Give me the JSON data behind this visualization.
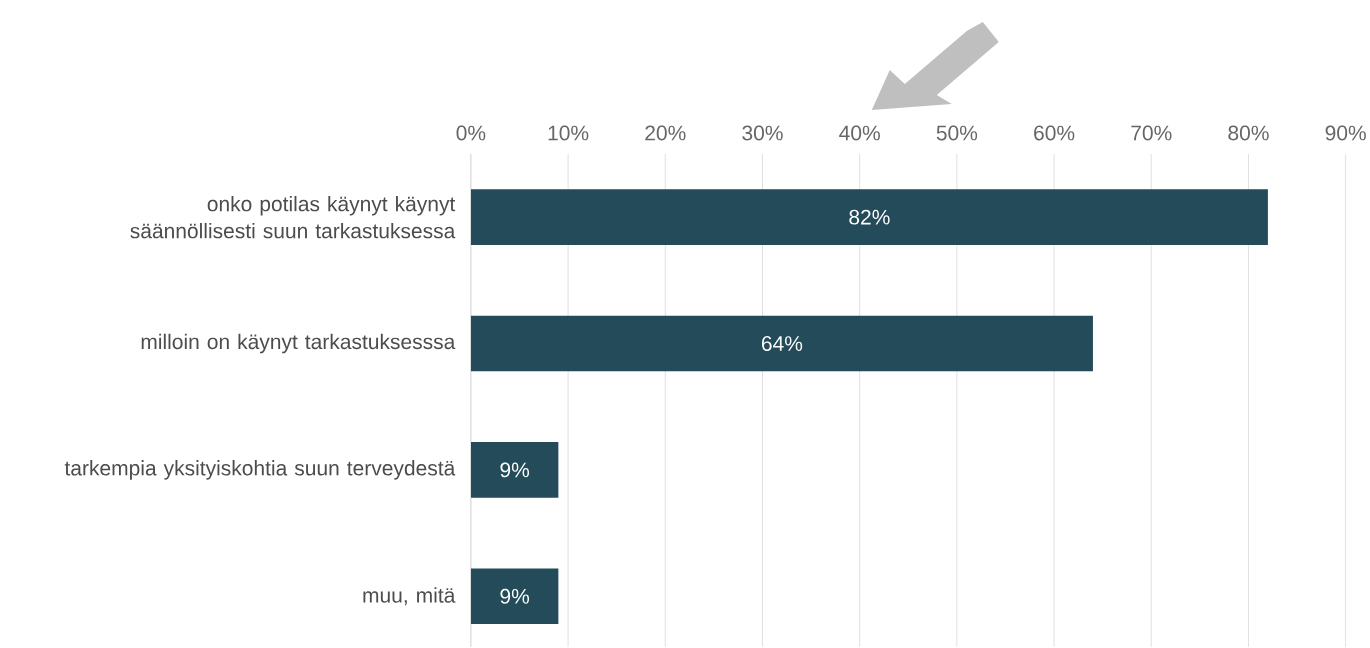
{
  "chart_data": {
    "type": "bar",
    "orientation": "horizontal",
    "categories": [
      "onko potilas käynyt käynyt säännöllisesti suun tarkastuksessa",
      "milloin on käynyt tarkastuksesssa",
      "tarkempia yksityiskohtia suun terveydestä",
      "muu, mitä"
    ],
    "values": [
      82,
      64,
      9,
      9
    ],
    "value_labels": [
      "82%",
      "64%",
      "9%",
      "9%"
    ],
    "color": "#234b5a",
    "xlim": [
      0,
      90
    ],
    "xticks": [
      {
        "value": 0,
        "label": "0%"
      },
      {
        "value": 10,
        "label": "10%"
      },
      {
        "value": 20,
        "label": "20%"
      },
      {
        "value": 30,
        "label": "30%"
      },
      {
        "value": 40,
        "label": "40%"
      },
      {
        "value": 50,
        "label": "50%"
      },
      {
        "value": 60,
        "label": "60%"
      },
      {
        "value": 70,
        "label": "70%"
      },
      {
        "value": 80,
        "label": "80%"
      },
      {
        "value": 90,
        "label": "90%"
      }
    ],
    "grid": "x"
  }
}
